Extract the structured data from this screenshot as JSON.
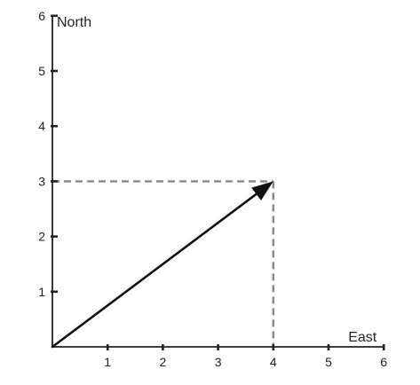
{
  "chart_data": {
    "type": "vector-diagram",
    "x_axis": {
      "label": "East",
      "range": [
        0,
        6
      ],
      "ticks": [
        "1",
        "2",
        "3",
        "4",
        "5",
        "6"
      ]
    },
    "y_axis": {
      "label": "North",
      "range": [
        0,
        6
      ],
      "ticks": [
        "1",
        "2",
        "3",
        "4",
        "5",
        "6"
      ]
    },
    "vector": {
      "from": [
        0,
        0
      ],
      "to": [
        4,
        3
      ]
    },
    "projections": {
      "x": 4,
      "y": 3,
      "style": "dashed"
    },
    "colors": {
      "axis": "#222222",
      "vector": "#111111",
      "projection": "#888888"
    }
  }
}
